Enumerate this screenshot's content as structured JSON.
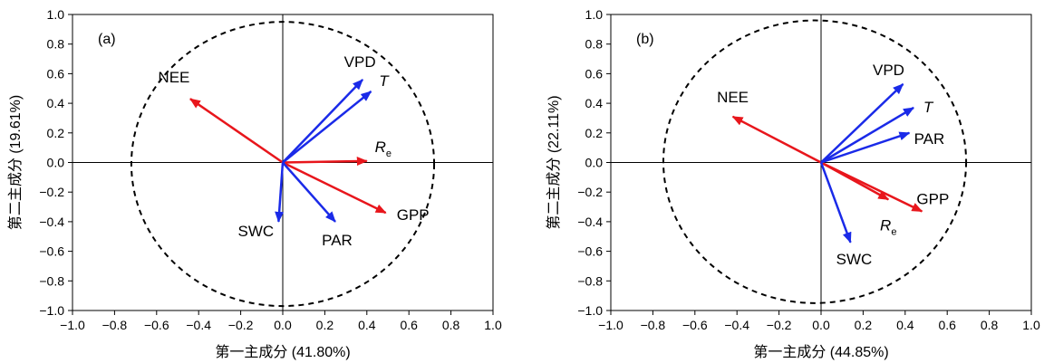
{
  "colors": {
    "red": "#e8161c",
    "blue": "#1a2ae8",
    "axis": "#000000"
  },
  "chart_data": [
    {
      "type": "biplot",
      "panel_label": "(a)",
      "xlabel": "第一主成分 (41.80%)",
      "ylabel": "第二主成分 (19.61%)",
      "xlim": [
        -1.0,
        1.0
      ],
      "ylim": [
        -1.0,
        1.0
      ],
      "ticks": [
        -1.0,
        -0.8,
        -0.6,
        -0.4,
        -0.2,
        0.0,
        0.2,
        0.4,
        0.6,
        0.8,
        1.0
      ],
      "tick_labels": [
        "−1.0",
        "−0.8",
        "−0.6",
        "−0.4",
        "−0.2",
        "0.0",
        "0.2",
        "0.4",
        "0.6",
        "0.8",
        "1.0"
      ],
      "circle": {
        "cx": 0.0,
        "cy": -0.01,
        "rx": 0.72,
        "ry": 0.96,
        "style": "dashed"
      },
      "vectors": [
        {
          "name": "NEE",
          "x": -0.44,
          "y": 0.43,
          "color": "red"
        },
        {
          "name": "Re",
          "x": 0.4,
          "y": 0.01,
          "color": "red"
        },
        {
          "name": "GPP",
          "x": 0.49,
          "y": -0.34,
          "color": "red"
        },
        {
          "name": "VPD",
          "x": 0.38,
          "y": 0.56,
          "color": "blue"
        },
        {
          "name": "T",
          "x": 0.42,
          "y": 0.48,
          "color": "blue"
        },
        {
          "name": "SWC",
          "x": -0.02,
          "y": -0.4,
          "color": "blue"
        },
        {
          "name": "PAR",
          "x": 0.25,
          "y": -0.4,
          "color": "blue"
        }
      ]
    },
    {
      "type": "biplot",
      "panel_label": "(b)",
      "xlabel": "第一主成分 (44.85%)",
      "ylabel": "第二主成分 (22.11%)",
      "xlim": [
        -1.0,
        1.0
      ],
      "ylim": [
        -1.0,
        1.0
      ],
      "ticks": [
        -1.0,
        -0.8,
        -0.6,
        -0.4,
        -0.2,
        0.0,
        0.2,
        0.4,
        0.6,
        0.8,
        1.0
      ],
      "tick_labels": [
        "−1.0",
        "−0.8",
        "−0.6",
        "−0.4",
        "−0.2",
        "0.0",
        "0.2",
        "0.4",
        "0.6",
        "0.8",
        "1.0"
      ],
      "circle": {
        "cx": -0.03,
        "cy": 0.005,
        "rx": 0.72,
        "ry": 0.955,
        "style": "dashed"
      },
      "vectors": [
        {
          "name": "NEE",
          "x": -0.42,
          "y": 0.31,
          "color": "red"
        },
        {
          "name": "Re",
          "x": 0.32,
          "y": -0.25,
          "color": "red"
        },
        {
          "name": "GPP",
          "x": 0.48,
          "y": -0.33,
          "color": "red"
        },
        {
          "name": "VPD",
          "x": 0.39,
          "y": 0.53,
          "color": "blue"
        },
        {
          "name": "T",
          "x": 0.44,
          "y": 0.37,
          "color": "blue"
        },
        {
          "name": "PAR",
          "x": 0.42,
          "y": 0.2,
          "color": "blue"
        },
        {
          "name": "SWC",
          "x": 0.14,
          "y": -0.54,
          "color": "blue"
        }
      ]
    }
  ]
}
